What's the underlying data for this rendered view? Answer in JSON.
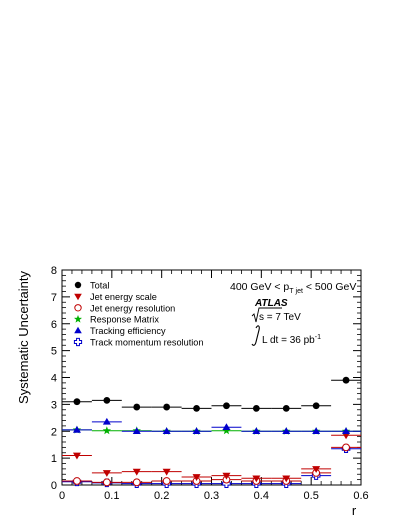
{
  "chart_data": {
    "type": "scatter",
    "xlabel": "r",
    "ylabel": "Systematic Uncertainty",
    "xlim": [
      0,
      0.6
    ],
    "ylim": [
      0,
      8
    ],
    "x_ticks": [
      "0",
      "0.1",
      "0.2",
      "0.3",
      "0.4",
      "0.5",
      "0.6"
    ],
    "y_ticks": [
      "0",
      "1",
      "2",
      "3",
      "4",
      "5",
      "6",
      "7",
      "8"
    ],
    "bins": [
      [
        0,
        0.06
      ],
      [
        0.06,
        0.12
      ],
      [
        0.12,
        0.18
      ],
      [
        0.18,
        0.24
      ],
      [
        0.24,
        0.3
      ],
      [
        0.3,
        0.36
      ],
      [
        0.36,
        0.42
      ],
      [
        0.42,
        0.48
      ],
      [
        0.48,
        0.54
      ],
      [
        0.54,
        0.6
      ]
    ],
    "x": [
      0.03,
      0.09,
      0.15,
      0.21,
      0.27,
      0.33,
      0.39,
      0.45,
      0.51,
      0.57
    ],
    "legend_position": "top-left",
    "series": [
      {
        "name": "Total",
        "marker": "filled-circle",
        "color": "#000000",
        "values": [
          3.1,
          3.15,
          2.9,
          2.9,
          2.85,
          2.95,
          2.85,
          2.85,
          2.95,
          3.9
        ]
      },
      {
        "name": "Jet energy scale",
        "marker": "filled-triangle-down",
        "color": "#c00000",
        "values": [
          1.1,
          0.45,
          0.5,
          0.5,
          0.3,
          0.35,
          0.25,
          0.25,
          0.6,
          1.85
        ]
      },
      {
        "name": "Jet energy resolution",
        "marker": "open-circle",
        "color": "#c00000",
        "values": [
          0.15,
          0.1,
          0.1,
          0.15,
          0.15,
          0.2,
          0.15,
          0.15,
          0.45,
          1.4
        ]
      },
      {
        "name": "Response Matrix",
        "marker": "filled-star",
        "color": "#00b000",
        "values": [
          2.05,
          2.02,
          2.02,
          2.0,
          2.0,
          2.02,
          2.0,
          2.0,
          2.0,
          2.0
        ]
      },
      {
        "name": "Tracking efficiency",
        "marker": "filled-triangle-up",
        "color": "#0000cc",
        "values": [
          2.05,
          2.35,
          2.0,
          2.0,
          2.0,
          2.15,
          2.0,
          2.0,
          2.0,
          2.0
        ]
      },
      {
        "name": "Track momentum resolution",
        "marker": "open-cross",
        "color": "#0000cc",
        "values": [
          0.12,
          0.08,
          0.05,
          0.05,
          0.05,
          0.05,
          0.05,
          0.05,
          0.35,
          1.35
        ]
      }
    ],
    "annotations": {
      "range": "400 GeV < p",
      "range_sub_t": "T",
      "range_sub_jet": "jet",
      "range_end": " < 500 GeV",
      "atlas": "ATLAS",
      "sqrt_s": "s = 7 TeV",
      "lumi_prefix": "L dt = 36 pb",
      "lumi_exp": "-1"
    }
  }
}
